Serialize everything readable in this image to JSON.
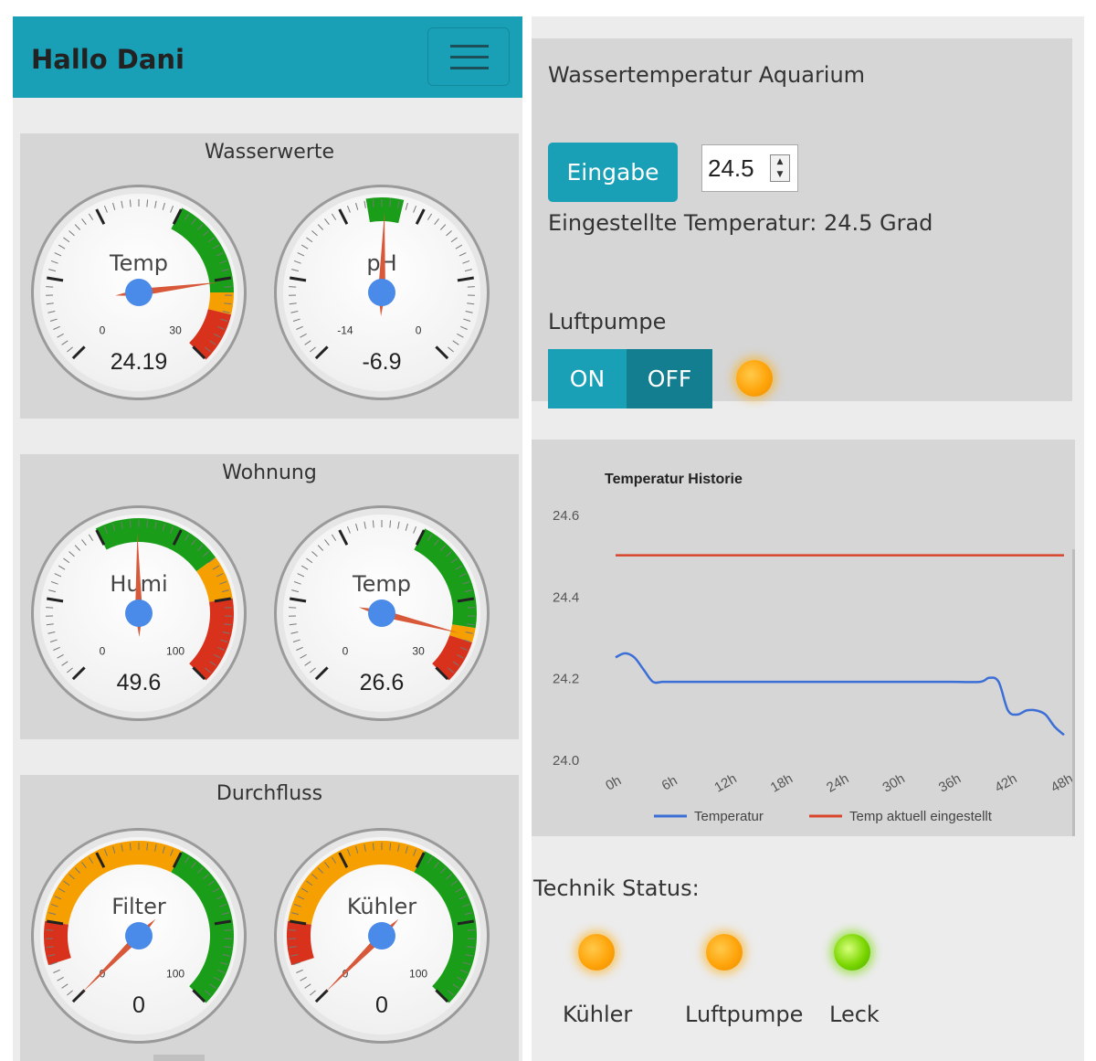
{
  "header": {
    "title": "Hallo Dani",
    "menu_icon": "hamburger-menu-icon"
  },
  "cards": [
    {
      "title": "Wasserwerte",
      "gauges": [
        {
          "label": "Temp",
          "value": "24.19",
          "numeric": 24.19,
          "min": 0,
          "max": 30,
          "min_label": "0",
          "max_label": "30",
          "bands": [
            {
              "from": 18,
              "to": 25,
              "color": "#1a9e1a"
            },
            {
              "from": 25,
              "to": 26.5,
              "color": "#f5a000"
            },
            {
              "from": 26.5,
              "to": 30,
              "color": "#d8321c"
            }
          ]
        },
        {
          "label": "pH",
          "value": "-6.9",
          "numeric": -6.9,
          "min": -14,
          "max": 0,
          "min_label": "-14",
          "max_label": "0",
          "bands": [
            {
              "from": -7.5,
              "to": -6.3,
              "color": "#1a9e1a"
            }
          ]
        }
      ]
    },
    {
      "title": "Wohnung",
      "gauges": [
        {
          "label": "Humi",
          "value": "49.6",
          "numeric": 49.6,
          "min": 0,
          "max": 100,
          "min_label": "0",
          "max_label": "100",
          "bands": [
            {
              "from": 40,
              "to": 70,
              "color": "#1a9e1a"
            },
            {
              "from": 70,
              "to": 80,
              "color": "#f5a000"
            },
            {
              "from": 80,
              "to": 100,
              "color": "#d8321c"
            }
          ]
        },
        {
          "label": "Temp",
          "value": "26.6",
          "numeric": 26.6,
          "min": 0,
          "max": 30,
          "min_label": "0",
          "max_label": "30",
          "bands": [
            {
              "from": 18,
              "to": 26,
              "color": "#1a9e1a"
            },
            {
              "from": 26,
              "to": 27,
              "color": "#f5a000"
            },
            {
              "from": 27,
              "to": 30,
              "color": "#d8321c"
            }
          ]
        }
      ]
    },
    {
      "title": "Durchfluss",
      "gauges": [
        {
          "label": "Filter",
          "value": "0",
          "numeric": 0,
          "min": 0,
          "max": 100,
          "min_label": "0",
          "max_label": "100",
          "bands": [
            {
              "from": 10,
              "to": 20,
              "color": "#d8321c"
            },
            {
              "from": 20,
              "to": 60,
              "color": "#f5a000"
            },
            {
              "from": 60,
              "to": 100,
              "color": "#1a9e1a"
            }
          ]
        },
        {
          "label": "Kühler",
          "value": "0",
          "numeric": 0,
          "min": 0,
          "max": 100,
          "min_label": "0",
          "max_label": "100",
          "bands": [
            {
              "from": 10,
              "to": 20,
              "color": "#d8321c"
            },
            {
              "from": 20,
              "to": 60,
              "color": "#f5a000"
            },
            {
              "from": 60,
              "to": 100,
              "color": "#1a9e1a"
            }
          ]
        }
      ]
    }
  ],
  "aquarium": {
    "title": "Wassertemperatur Aquarium",
    "button_label": "Eingabe",
    "input_value": "24.5",
    "status_text": "Eingestellte Temperatur: 24.5 Grad",
    "pump_label": "Luftpumpe",
    "toggle_on": "ON",
    "toggle_off": "OFF",
    "pump_led_color": "#ffa40a"
  },
  "chart_data": {
    "type": "line",
    "title": "Temperatur Historie",
    "x_ticks": [
      "0h",
      "6h",
      "12h",
      "18h",
      "24h",
      "30h",
      "36h",
      "42h",
      "48h"
    ],
    "y_ticks": [
      "24.0",
      "24.2",
      "24.4",
      "24.6"
    ],
    "ylim": [
      24.0,
      24.6
    ],
    "xlim": [
      0,
      48
    ],
    "series": [
      {
        "name": "Temperatur",
        "color": "#3c6fd6",
        "x": [
          0,
          1,
          2,
          3,
          4,
          5,
          6,
          9,
          12,
          18,
          24,
          30,
          36,
          39,
          40,
          41,
          42,
          43,
          44,
          45,
          46,
          47,
          48
        ],
        "y": [
          24.25,
          24.26,
          24.25,
          24.22,
          24.19,
          24.19,
          24.19,
          24.19,
          24.19,
          24.19,
          24.19,
          24.19,
          24.19,
          24.19,
          24.2,
          24.19,
          24.12,
          24.11,
          24.12,
          24.12,
          24.11,
          24.08,
          24.06
        ]
      },
      {
        "name": "Temp aktuell eingestellt",
        "color": "#d8452c",
        "x": [
          0,
          48
        ],
        "y": [
          24.5,
          24.5
        ]
      }
    ],
    "legend": "bottom"
  },
  "tech_status": {
    "title": "Technik Status:",
    "items": [
      {
        "label": "Kühler",
        "state": "orange"
      },
      {
        "label": "Luftpumpe",
        "state": "orange"
      },
      {
        "label": "Leck",
        "state": "green"
      }
    ]
  }
}
